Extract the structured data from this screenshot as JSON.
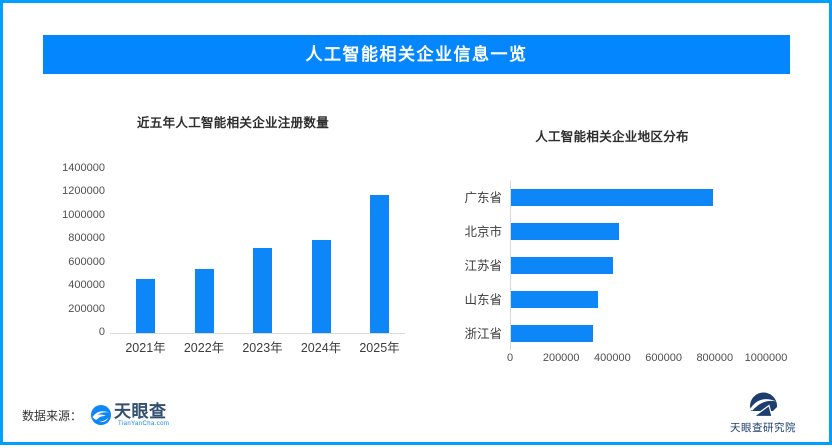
{
  "page": {
    "title": "人工智能相关企业信息一览",
    "border_color": "#01a0ff",
    "banner_color": "#0487fe",
    "bar_color": "#0d86f8"
  },
  "footer": {
    "source_label": "数据来源：",
    "source_logo_text": "天眼查",
    "source_logo_sub": "TianYanCha.com",
    "institute_label": "天眼查研究院"
  },
  "chart_data": [
    {
      "type": "bar",
      "title": "近五年人工智能相关企业注册数量",
      "categories": [
        "2021年",
        "2022年",
        "2023年",
        "2024年",
        "2025年"
      ],
      "values": [
        460000,
        550000,
        730000,
        790000,
        1180000
      ],
      "xlabel": "",
      "ylabel": "",
      "ylim": [
        0,
        1400000
      ],
      "yticks": [
        0,
        200000,
        400000,
        600000,
        800000,
        1000000,
        1200000,
        1400000
      ],
      "grid": false,
      "legend": null,
      "bar_color": "#0d86f8"
    },
    {
      "type": "bar",
      "orientation": "horizontal",
      "title": "人工智能相关企业地区分布",
      "categories": [
        "广东省",
        "北京市",
        "江苏省",
        "山东省",
        "浙江省"
      ],
      "values": [
        790000,
        420000,
        400000,
        340000,
        320000
      ],
      "xlabel": "",
      "ylabel": "",
      "xlim": [
        0,
        1000000
      ],
      "xticks": [
        0,
        200000,
        400000,
        600000,
        800000,
        1000000
      ],
      "grid": false,
      "legend": null,
      "bar_color": "#0d86f8"
    }
  ]
}
